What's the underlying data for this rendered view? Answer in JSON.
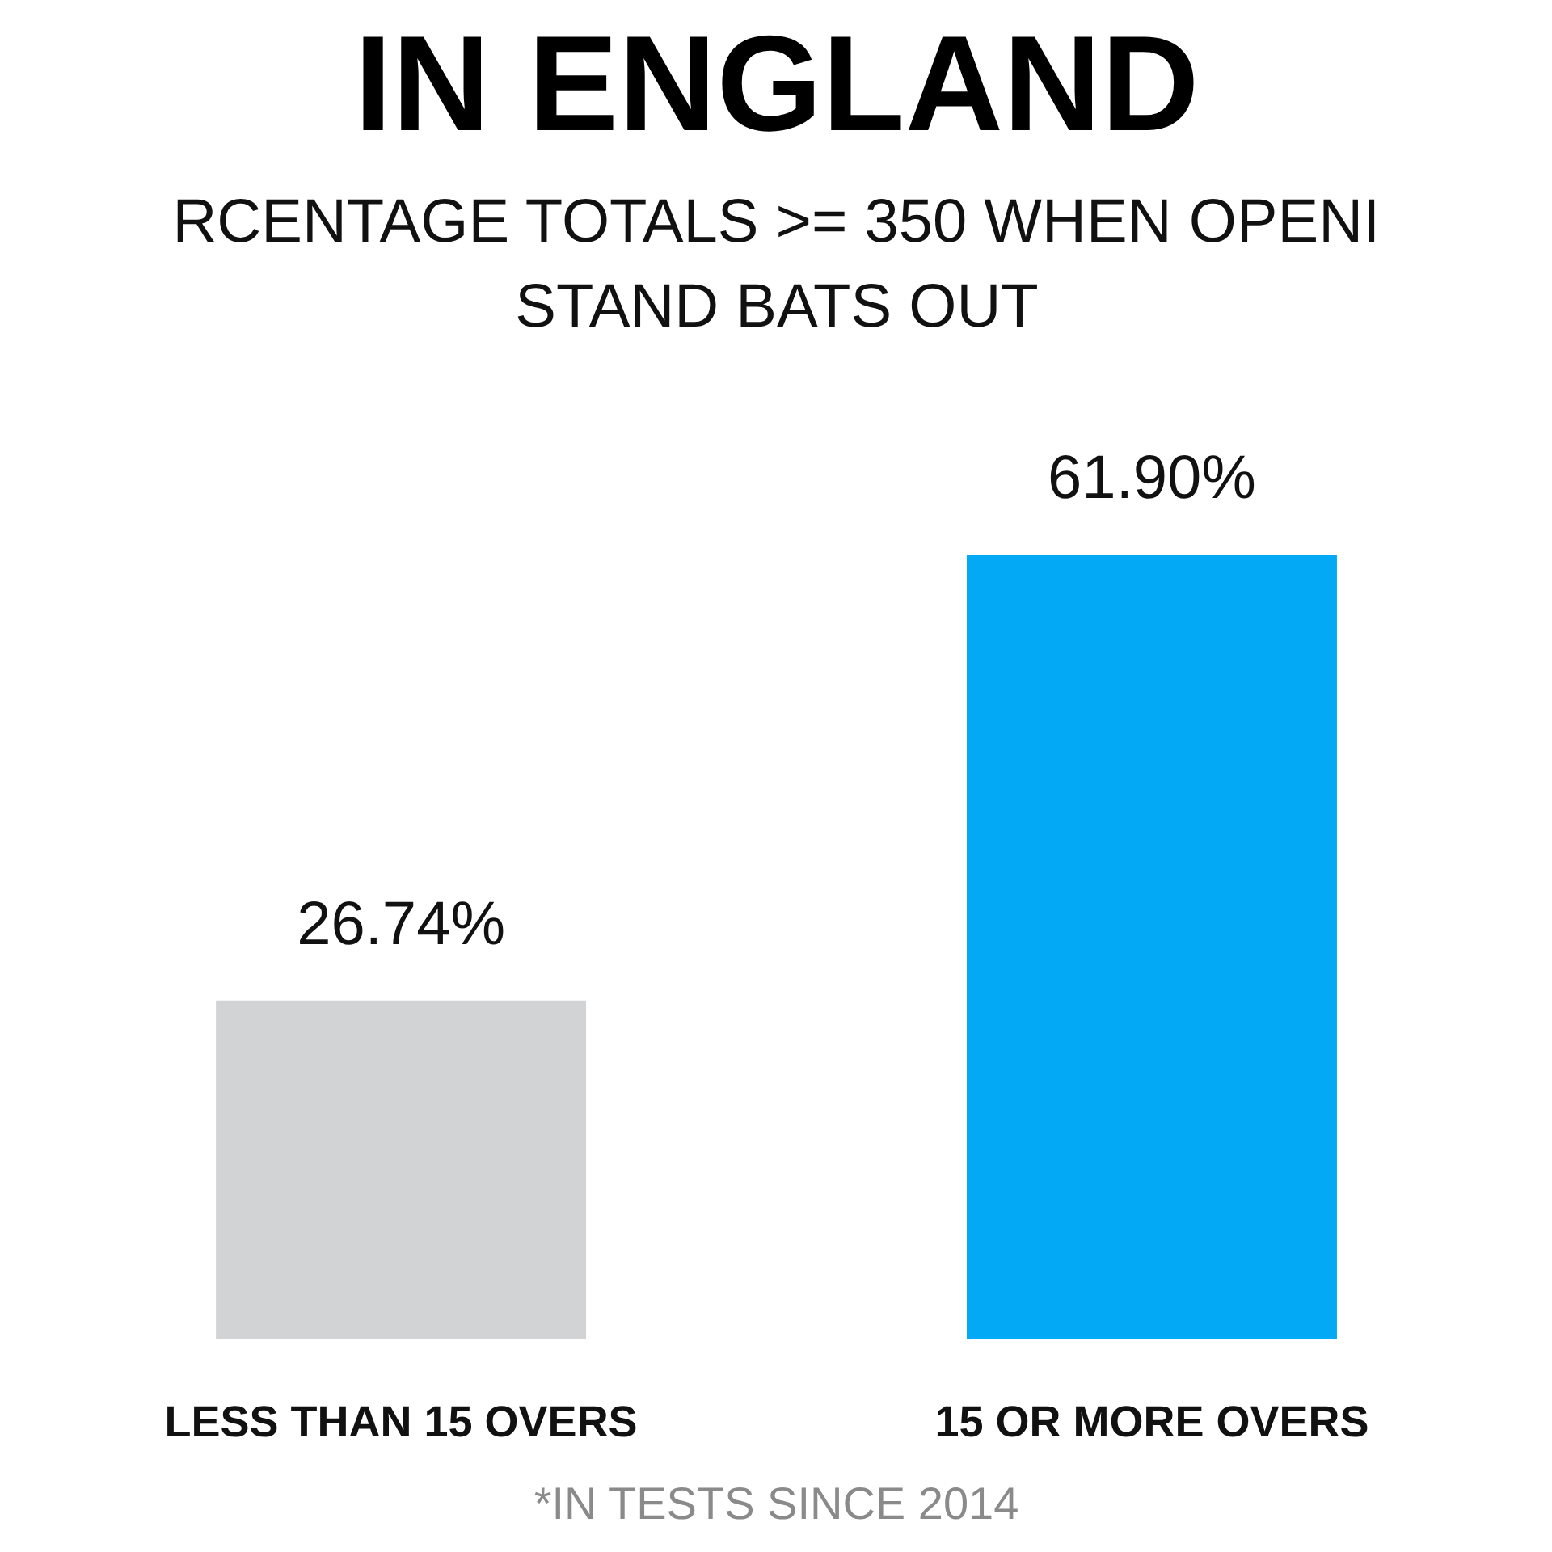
{
  "chart_data": {
    "type": "bar",
    "title": "IN ENGLAND",
    "subtitle": "RCENTAGE TOTALS >= 350 WHEN OPENI\nSTAND BATS OUT",
    "categories": [
      "LESS THAN 15 OVERS",
      "15 OR MORE OVERS"
    ],
    "values": [
      26.74,
      61.9
    ],
    "colors": [
      "#d1d3d4",
      "#03a9f4"
    ],
    "value_labels": [
      "26.74%",
      "61.90%"
    ],
    "tick_labels": "x",
    "annotations": [
      "*IN TESTS SINCE 2014"
    ]
  }
}
